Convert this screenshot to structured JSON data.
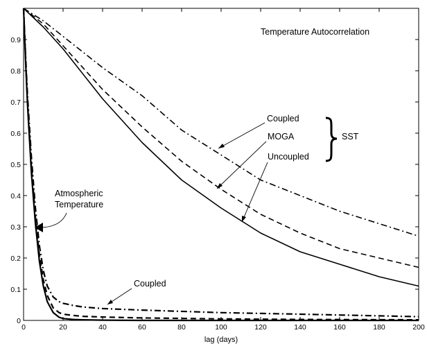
{
  "chart_data": {
    "type": "line",
    "title": "Temperature Autocorrelation",
    "xlabel": "lag (days)",
    "ylabel": "",
    "xlim": [
      0,
      200
    ],
    "ylim": [
      0,
      1
    ],
    "grid": false,
    "xticks": [
      0,
      20,
      40,
      60,
      80,
      100,
      120,
      140,
      160,
      180,
      200
    ],
    "yticks": [
      0.1,
      0.2,
      0.3,
      0.4,
      0.5,
      0.6,
      0.7,
      0.8,
      0.9
    ],
    "series": [
      {
        "group": "SST",
        "style": "dashdot",
        "x": [
          0,
          10,
          20,
          40,
          60,
          80,
          100,
          120,
          140,
          160,
          180,
          200
        ],
        "y": [
          1.0,
          0.96,
          0.91,
          0.81,
          0.72,
          0.61,
          0.53,
          0.45,
          0.4,
          0.35,
          0.31,
          0.27
        ]
      },
      {
        "group": "SST",
        "style": "dashed",
        "x": [
          0,
          10,
          20,
          40,
          60,
          80,
          100,
          120,
          140,
          160,
          180,
          200
        ],
        "y": [
          1.0,
          0.95,
          0.88,
          0.74,
          0.62,
          0.51,
          0.42,
          0.34,
          0.28,
          0.23,
          0.2,
          0.17
        ]
      },
      {
        "group": "SST",
        "style": "solid",
        "x": [
          0,
          10,
          20,
          40,
          60,
          80,
          100,
          120,
          140,
          160,
          180,
          200
        ],
        "y": [
          1.0,
          0.94,
          0.87,
          0.71,
          0.57,
          0.45,
          0.36,
          0.28,
          0.22,
          0.18,
          0.14,
          0.11
        ]
      },
      {
        "group": "Atmospheric",
        "style": "dashdot",
        "x": [
          0,
          1,
          2,
          4,
          6,
          8,
          10,
          12,
          15,
          18,
          20,
          25,
          30,
          40,
          60,
          100,
          140,
          200
        ],
        "y": [
          1.0,
          0.85,
          0.72,
          0.52,
          0.36,
          0.24,
          0.16,
          0.11,
          0.075,
          0.06,
          0.055,
          0.048,
          0.043,
          0.038,
          0.033,
          0.025,
          0.02,
          0.012
        ]
      },
      {
        "group": "Atmospheric",
        "style": "dashed",
        "x": [
          0,
          1,
          2,
          4,
          6,
          8,
          10,
          12,
          15,
          18,
          20,
          25,
          30,
          40,
          60,
          100,
          140,
          200
        ],
        "y": [
          1.0,
          0.84,
          0.7,
          0.49,
          0.33,
          0.21,
          0.13,
          0.08,
          0.04,
          0.025,
          0.02,
          0.016,
          0.013,
          0.011,
          0.008,
          0.005,
          0.003,
          0.002
        ]
      },
      {
        "group": "Atmospheric",
        "style": "solid",
        "x": [
          0,
          1,
          2,
          4,
          6,
          8,
          10,
          12,
          15,
          18,
          20,
          25,
          30,
          40,
          60,
          100,
          140,
          200
        ],
        "y": [
          1.0,
          0.83,
          0.69,
          0.47,
          0.31,
          0.19,
          0.11,
          0.06,
          0.025,
          0.01,
          0.006,
          0.003,
          0.002,
          0.001,
          0.0,
          0.0,
          0.0,
          0.0
        ]
      }
    ],
    "annotations": {
      "sst_coupled": "Coupled",
      "sst_moga": "MOGA",
      "sst_uncoupled": "Uncoupled",
      "sst_group": "SST",
      "atmos_line1": "Atmospheric",
      "atmos_line2": "Temperature",
      "atmos_coupled": "Coupled"
    }
  }
}
